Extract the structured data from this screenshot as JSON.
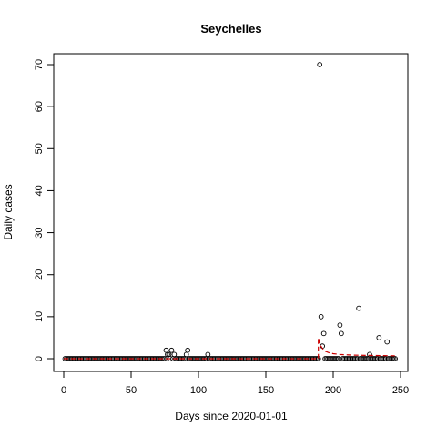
{
  "chart_data": {
    "type": "scatter",
    "title": "Seychelles",
    "xlabel": "Days since 2020-01-01",
    "ylabel": "Daily cases",
    "xlim": [
      0,
      250
    ],
    "ylim": [
      0,
      70
    ],
    "x_ticks": [
      "0",
      "50",
      "100",
      "150",
      "200",
      "250"
    ],
    "y_ticks": [
      "0",
      "10",
      "20",
      "30",
      "40",
      "50",
      "60",
      "70"
    ],
    "grid": false,
    "legend": "none",
    "point_color": "#000000",
    "fit_color": "#cc0000",
    "zero_days": {
      "start": 1,
      "end": 246
    },
    "points": [
      {
        "x": 76,
        "y": 2
      },
      {
        "x": 77,
        "y": 1
      },
      {
        "x": 78,
        "y": 1
      },
      {
        "x": 80,
        "y": 2
      },
      {
        "x": 82,
        "y": 1
      },
      {
        "x": 91,
        "y": 1
      },
      {
        "x": 92,
        "y": 2
      },
      {
        "x": 107,
        "y": 1
      },
      {
        "x": 190,
        "y": 70
      },
      {
        "x": 191,
        "y": 10
      },
      {
        "x": 192,
        "y": 3
      },
      {
        "x": 193,
        "y": 6
      },
      {
        "x": 205,
        "y": 8
      },
      {
        "x": 206,
        "y": 6
      },
      {
        "x": 219,
        "y": 12
      },
      {
        "x": 227,
        "y": 1
      },
      {
        "x": 234,
        "y": 5
      },
      {
        "x": 240,
        "y": 4
      }
    ],
    "fit_line": [
      {
        "x": 0,
        "y": 0
      },
      {
        "x": 189,
        "y": 0
      },
      {
        "x": 189,
        "y": 5
      },
      {
        "x": 190,
        "y": 3.5
      },
      {
        "x": 192,
        "y": 2.4
      },
      {
        "x": 194,
        "y": 1.8
      },
      {
        "x": 197,
        "y": 1.4
      },
      {
        "x": 200,
        "y": 1.2
      },
      {
        "x": 205,
        "y": 1.0
      },
      {
        "x": 215,
        "y": 0.85
      },
      {
        "x": 230,
        "y": 0.75
      },
      {
        "x": 246,
        "y": 0.7
      }
    ]
  }
}
